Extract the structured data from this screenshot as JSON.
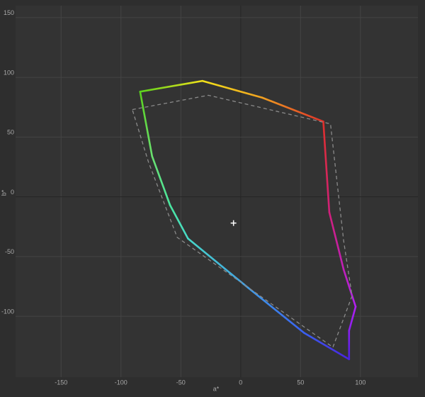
{
  "chart_data": {
    "type": "line",
    "x_label": "a*",
    "y_label": "b*",
    "xlim": [
      -188,
      148
    ],
    "ylim": [
      -151,
      160
    ],
    "xticks": [
      -150,
      -100,
      -50,
      0,
      50,
      100
    ],
    "yticks": [
      -100,
      -50,
      0,
      50,
      100,
      150
    ],
    "grid": true,
    "closed": true,
    "series": [
      {
        "style": "solid",
        "x": [
          -84,
          -32,
          18,
          69,
          74,
          86,
          96,
          90.5,
          90.5,
          53,
          6,
          -44,
          -59,
          -74
        ],
        "y": [
          88,
          97,
          83,
          63,
          -13,
          -61,
          -92,
          -112,
          -136,
          -114,
          -76,
          -35,
          -7,
          34
        ],
        "colors": [
          "#5ad21e",
          "#f2e21a",
          "#f0a020",
          "#e0302a",
          "#d0207a",
          "#c020b8",
          "#b020f0",
          "#8a20f0",
          "#4a22e0",
          "#3a60f0",
          "#3f9ee8",
          "#48d8c8",
          "#4ae6a0",
          "#6ae070"
        ]
      },
      {
        "style": "dashed",
        "color": "#8a8a8a",
        "x": [
          -90.5,
          -27,
          75,
          86,
          93,
          77,
          -53,
          -77
        ],
        "y": [
          73,
          85,
          61,
          -37,
          -83,
          -126,
          -34,
          29
        ]
      }
    ],
    "marker": {
      "x": -6,
      "y": -22,
      "color": "#ffffff"
    }
  }
}
